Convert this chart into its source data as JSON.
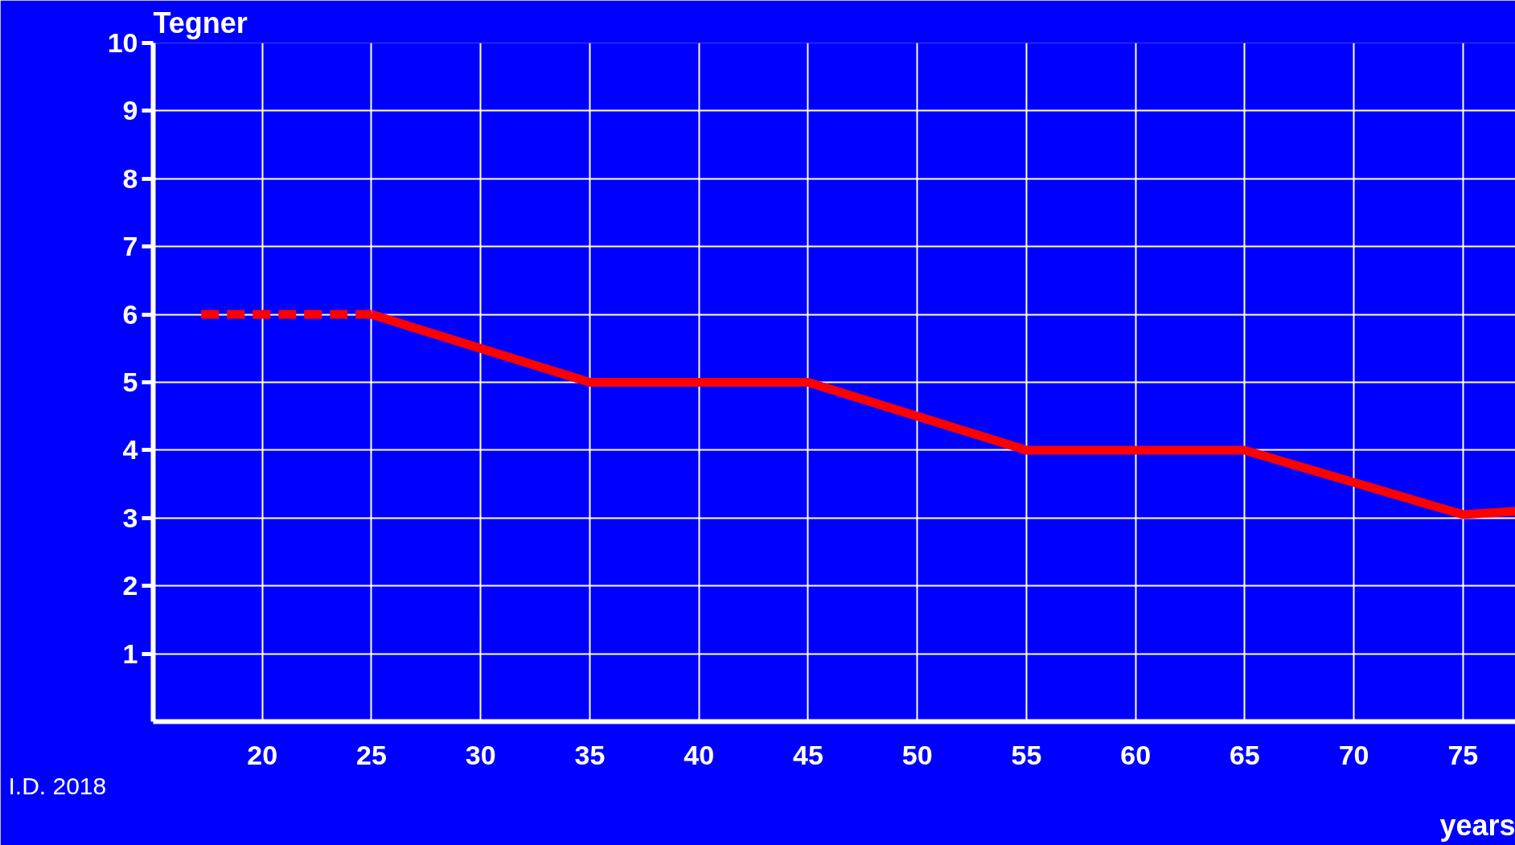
{
  "chart_data": {
    "type": "line",
    "ylabel": "Tegner",
    "xlabel": "years",
    "annotations": [
      "I.D. 2018"
    ],
    "xlim": [
      15,
      77.4
    ],
    "ylim": [
      0,
      10
    ],
    "xticks": [
      20,
      25,
      30,
      35,
      40,
      45,
      50,
      55,
      60,
      65,
      70,
      75
    ],
    "yticks": [
      1,
      2,
      3,
      4,
      5,
      6,
      7,
      8,
      9,
      10
    ],
    "grid": true,
    "marker": "none",
    "series": [
      {
        "color": "#ff0000",
        "line_style": "dashed",
        "x": [
          17.2,
          25
        ],
        "values": [
          6,
          6
        ]
      },
      {
        "color": "#ff0000",
        "line_style": "solid",
        "x": [
          25,
          35,
          45,
          55,
          65,
          75,
          77.4
        ],
        "values": [
          6,
          5,
          5,
          4,
          4,
          3.05,
          3.1
        ]
      }
    ]
  }
}
